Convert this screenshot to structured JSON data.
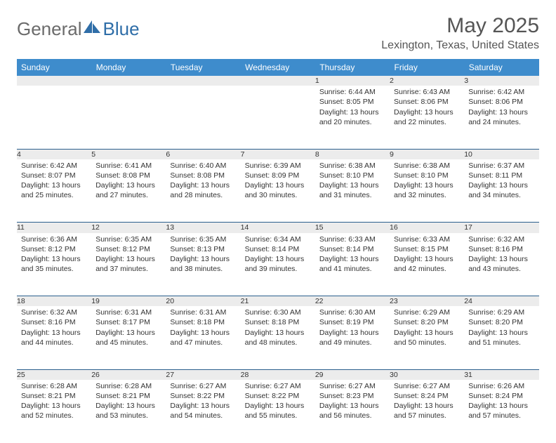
{
  "brand": {
    "part1": "General",
    "part2": "Blue"
  },
  "title": "May 2025",
  "location": "Lexington, Texas, United States",
  "colors": {
    "header_bg": "#3e8ccc",
    "header_text": "#ffffff",
    "daynum_bg": "#ececec",
    "sep_line": "#2b5f8e",
    "brand_gray": "#6b6b6b",
    "brand_blue": "#2f6ea8"
  },
  "weekdays": [
    "Sunday",
    "Monday",
    "Tuesday",
    "Wednesday",
    "Thursday",
    "Friday",
    "Saturday"
  ],
  "weeks": [
    [
      null,
      null,
      null,
      null,
      {
        "n": "1",
        "sr": "Sunrise: 6:44 AM",
        "ss": "Sunset: 8:05 PM",
        "dl1": "Daylight: 13 hours",
        "dl2": "and 20 minutes."
      },
      {
        "n": "2",
        "sr": "Sunrise: 6:43 AM",
        "ss": "Sunset: 8:06 PM",
        "dl1": "Daylight: 13 hours",
        "dl2": "and 22 minutes."
      },
      {
        "n": "3",
        "sr": "Sunrise: 6:42 AM",
        "ss": "Sunset: 8:06 PM",
        "dl1": "Daylight: 13 hours",
        "dl2": "and 24 minutes."
      }
    ],
    [
      {
        "n": "4",
        "sr": "Sunrise: 6:42 AM",
        "ss": "Sunset: 8:07 PM",
        "dl1": "Daylight: 13 hours",
        "dl2": "and 25 minutes."
      },
      {
        "n": "5",
        "sr": "Sunrise: 6:41 AM",
        "ss": "Sunset: 8:08 PM",
        "dl1": "Daylight: 13 hours",
        "dl2": "and 27 minutes."
      },
      {
        "n": "6",
        "sr": "Sunrise: 6:40 AM",
        "ss": "Sunset: 8:08 PM",
        "dl1": "Daylight: 13 hours",
        "dl2": "and 28 minutes."
      },
      {
        "n": "7",
        "sr": "Sunrise: 6:39 AM",
        "ss": "Sunset: 8:09 PM",
        "dl1": "Daylight: 13 hours",
        "dl2": "and 30 minutes."
      },
      {
        "n": "8",
        "sr": "Sunrise: 6:38 AM",
        "ss": "Sunset: 8:10 PM",
        "dl1": "Daylight: 13 hours",
        "dl2": "and 31 minutes."
      },
      {
        "n": "9",
        "sr": "Sunrise: 6:38 AM",
        "ss": "Sunset: 8:10 PM",
        "dl1": "Daylight: 13 hours",
        "dl2": "and 32 minutes."
      },
      {
        "n": "10",
        "sr": "Sunrise: 6:37 AM",
        "ss": "Sunset: 8:11 PM",
        "dl1": "Daylight: 13 hours",
        "dl2": "and 34 minutes."
      }
    ],
    [
      {
        "n": "11",
        "sr": "Sunrise: 6:36 AM",
        "ss": "Sunset: 8:12 PM",
        "dl1": "Daylight: 13 hours",
        "dl2": "and 35 minutes."
      },
      {
        "n": "12",
        "sr": "Sunrise: 6:35 AM",
        "ss": "Sunset: 8:12 PM",
        "dl1": "Daylight: 13 hours",
        "dl2": "and 37 minutes."
      },
      {
        "n": "13",
        "sr": "Sunrise: 6:35 AM",
        "ss": "Sunset: 8:13 PM",
        "dl1": "Daylight: 13 hours",
        "dl2": "and 38 minutes."
      },
      {
        "n": "14",
        "sr": "Sunrise: 6:34 AM",
        "ss": "Sunset: 8:14 PM",
        "dl1": "Daylight: 13 hours",
        "dl2": "and 39 minutes."
      },
      {
        "n": "15",
        "sr": "Sunrise: 6:33 AM",
        "ss": "Sunset: 8:14 PM",
        "dl1": "Daylight: 13 hours",
        "dl2": "and 41 minutes."
      },
      {
        "n": "16",
        "sr": "Sunrise: 6:33 AM",
        "ss": "Sunset: 8:15 PM",
        "dl1": "Daylight: 13 hours",
        "dl2": "and 42 minutes."
      },
      {
        "n": "17",
        "sr": "Sunrise: 6:32 AM",
        "ss": "Sunset: 8:16 PM",
        "dl1": "Daylight: 13 hours",
        "dl2": "and 43 minutes."
      }
    ],
    [
      {
        "n": "18",
        "sr": "Sunrise: 6:32 AM",
        "ss": "Sunset: 8:16 PM",
        "dl1": "Daylight: 13 hours",
        "dl2": "and 44 minutes."
      },
      {
        "n": "19",
        "sr": "Sunrise: 6:31 AM",
        "ss": "Sunset: 8:17 PM",
        "dl1": "Daylight: 13 hours",
        "dl2": "and 45 minutes."
      },
      {
        "n": "20",
        "sr": "Sunrise: 6:31 AM",
        "ss": "Sunset: 8:18 PM",
        "dl1": "Daylight: 13 hours",
        "dl2": "and 47 minutes."
      },
      {
        "n": "21",
        "sr": "Sunrise: 6:30 AM",
        "ss": "Sunset: 8:18 PM",
        "dl1": "Daylight: 13 hours",
        "dl2": "and 48 minutes."
      },
      {
        "n": "22",
        "sr": "Sunrise: 6:30 AM",
        "ss": "Sunset: 8:19 PM",
        "dl1": "Daylight: 13 hours",
        "dl2": "and 49 minutes."
      },
      {
        "n": "23",
        "sr": "Sunrise: 6:29 AM",
        "ss": "Sunset: 8:20 PM",
        "dl1": "Daylight: 13 hours",
        "dl2": "and 50 minutes."
      },
      {
        "n": "24",
        "sr": "Sunrise: 6:29 AM",
        "ss": "Sunset: 8:20 PM",
        "dl1": "Daylight: 13 hours",
        "dl2": "and 51 minutes."
      }
    ],
    [
      {
        "n": "25",
        "sr": "Sunrise: 6:28 AM",
        "ss": "Sunset: 8:21 PM",
        "dl1": "Daylight: 13 hours",
        "dl2": "and 52 minutes."
      },
      {
        "n": "26",
        "sr": "Sunrise: 6:28 AM",
        "ss": "Sunset: 8:21 PM",
        "dl1": "Daylight: 13 hours",
        "dl2": "and 53 minutes."
      },
      {
        "n": "27",
        "sr": "Sunrise: 6:27 AM",
        "ss": "Sunset: 8:22 PM",
        "dl1": "Daylight: 13 hours",
        "dl2": "and 54 minutes."
      },
      {
        "n": "28",
        "sr": "Sunrise: 6:27 AM",
        "ss": "Sunset: 8:22 PM",
        "dl1": "Daylight: 13 hours",
        "dl2": "and 55 minutes."
      },
      {
        "n": "29",
        "sr": "Sunrise: 6:27 AM",
        "ss": "Sunset: 8:23 PM",
        "dl1": "Daylight: 13 hours",
        "dl2": "and 56 minutes."
      },
      {
        "n": "30",
        "sr": "Sunrise: 6:27 AM",
        "ss": "Sunset: 8:24 PM",
        "dl1": "Daylight: 13 hours",
        "dl2": "and 57 minutes."
      },
      {
        "n": "31",
        "sr": "Sunrise: 6:26 AM",
        "ss": "Sunset: 8:24 PM",
        "dl1": "Daylight: 13 hours",
        "dl2": "and 57 minutes."
      }
    ]
  ]
}
